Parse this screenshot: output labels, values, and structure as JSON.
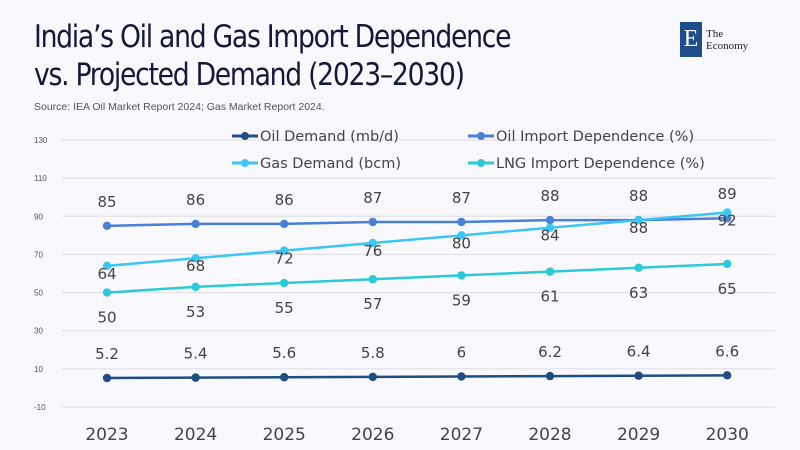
{
  "title_line1": "India’s Oil and Gas Import Dependence",
  "title_line2": "vs. Projected Demand (2023–2030)",
  "source": "Source:  IEA Oil Market Report 2024; Gas Market Report 2024.",
  "logo": {
    "letter": "E",
    "line1": "The",
    "line2": "Economy"
  },
  "chart_data": {
    "type": "line",
    "categories": [
      "2023",
      "2024",
      "2025",
      "2026",
      "2027",
      "2028",
      "2029",
      "2030"
    ],
    "ylim": [
      -10,
      130
    ],
    "yticks": [
      "-10",
      "10",
      "30",
      "50",
      "70",
      "90",
      "110",
      "130"
    ],
    "grid": true,
    "legend": "top",
    "series": [
      {
        "name": "Oil Demand (mb/d)",
        "color": "#1f4e85",
        "values": [
          5.2,
          5.4,
          5.6,
          5.8,
          6,
          6.2,
          6.4,
          6.6
        ],
        "labels": [
          "5.2",
          "5.4",
          "5.6",
          "5.8",
          "6",
          "6.2",
          "6.4",
          "6.6"
        ],
        "label_pos": "above"
      },
      {
        "name": "Oil Import Dependence (%)",
        "color": "#4a80d6",
        "values": [
          85,
          86,
          86,
          87,
          87,
          88,
          88,
          89
        ],
        "labels": [
          "85",
          "86",
          "86",
          "87",
          "87",
          "88",
          "88",
          "89"
        ],
        "label_pos": "above"
      },
      {
        "name": "Gas Demand (bcm)",
        "color": "#3cc6f4",
        "values": [
          64,
          68,
          72,
          76,
          80,
          84,
          88,
          92
        ],
        "labels": [
          "64",
          "68",
          "72",
          "76",
          "80",
          "84",
          "88",
          "92"
        ],
        "label_pos": "below"
      },
      {
        "name": "LNG Import Dependence (%)",
        "color": "#2ccad6",
        "values": [
          50,
          53,
          55,
          57,
          59,
          61,
          63,
          65
        ],
        "labels": [
          "50",
          "53",
          "55",
          "57",
          "59",
          "61",
          "63",
          "65"
        ],
        "label_pos": "below"
      }
    ]
  }
}
